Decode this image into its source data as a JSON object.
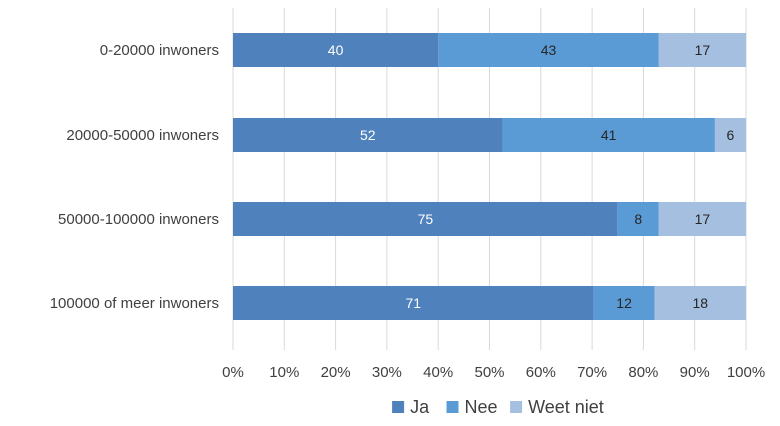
{
  "chart_data": {
    "type": "bar",
    "orientation": "horizontal",
    "stacked": "percent",
    "categories": [
      "0-20000 inwoners",
      "20000-50000 inwoners",
      "50000-100000 inwoners",
      "100000 of meer inwoners"
    ],
    "series": [
      {
        "name": "Ja",
        "color": "#4f81bd",
        "values": [
          40,
          52,
          75,
          71
        ]
      },
      {
        "name": "Nee",
        "color": "#5b9bd5",
        "values": [
          43,
          41,
          8,
          12
        ]
      },
      {
        "name": "Weet niet",
        "color": "#a5bfe0",
        "values": [
          17,
          6,
          17,
          18
        ]
      }
    ],
    "title": "",
    "xlabel": "",
    "ylabel": "",
    "xlim": [
      0,
      100
    ],
    "x_ticks": [
      "0%",
      "10%",
      "20%",
      "30%",
      "40%",
      "50%",
      "60%",
      "70%",
      "80%",
      "90%",
      "100%"
    ],
    "grid": "vertical",
    "legend": "bottom-center"
  }
}
